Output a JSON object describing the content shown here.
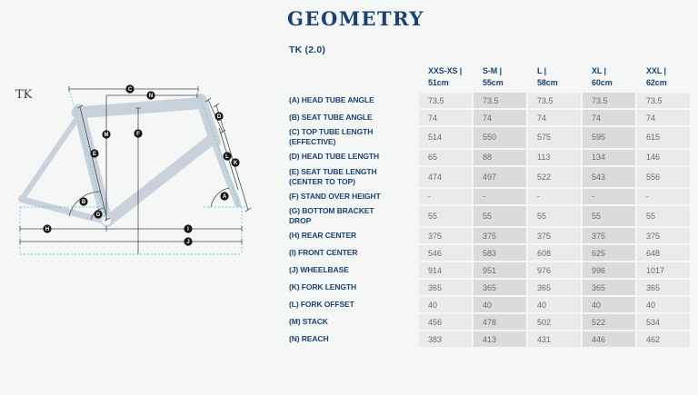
{
  "page": {
    "title": "GEOMETRY",
    "model": "TK (2.0)"
  },
  "diagram": {
    "label": "TK",
    "marker_letters": [
      "A",
      "B",
      "C",
      "D",
      "E",
      "F",
      "G",
      "H",
      "I",
      "J",
      "K",
      "L",
      "M",
      "N"
    ]
  },
  "table": {
    "columns": [
      {
        "line1": "XXS-XS |",
        "line2": "51cm"
      },
      {
        "line1": "S-M |",
        "line2": "55cm"
      },
      {
        "line1": "L |",
        "line2": "58cm"
      },
      {
        "line1": "XL |",
        "line2": "60cm"
      },
      {
        "line1": "XXL |",
        "line2": "62cm"
      }
    ],
    "rows": [
      {
        "label_lines": [
          "(A) HEAD TUBE ANGLE"
        ],
        "values": [
          "73.5",
          "73.5",
          "73.5",
          "73.5",
          "73.5"
        ]
      },
      {
        "label_lines": [
          "(B) SEAT TUBE ANGLE"
        ],
        "values": [
          "74",
          "74",
          "74",
          "74",
          "74"
        ]
      },
      {
        "label_lines": [
          "(C) TOP TUBE LENGTH",
          "(EFFECTIVE)"
        ],
        "values": [
          "514",
          "550",
          "575",
          "595",
          "615"
        ]
      },
      {
        "label_lines": [
          "(D) HEAD TUBE LENGTH"
        ],
        "values": [
          "65",
          "88",
          "113",
          "134",
          "146"
        ]
      },
      {
        "label_lines": [
          "(E) SEAT TUBE LENGTH",
          "(CENTER TO TOP)"
        ],
        "values": [
          "474",
          "497",
          "522",
          "543",
          "556"
        ]
      },
      {
        "label_lines": [
          "(F) STAND OVER HEIGHT"
        ],
        "values": [
          "-",
          "-",
          "-",
          "-",
          "-"
        ]
      },
      {
        "label_lines": [
          "(G) BOTTOM BRACKET",
          "DROP"
        ],
        "values": [
          "55",
          "55",
          "55",
          "55",
          "55"
        ]
      },
      {
        "label_lines": [
          "(H) REAR CENTER"
        ],
        "values": [
          "375",
          "375",
          "375",
          "375",
          "375"
        ]
      },
      {
        "label_lines": [
          "(I) FRONT CENTER"
        ],
        "values": [
          "546",
          "583",
          "608",
          "625",
          "648"
        ]
      },
      {
        "label_lines": [
          "(J) WHEELBASE"
        ],
        "values": [
          "914",
          "951",
          "976",
          "996",
          "1017"
        ]
      },
      {
        "label_lines": [
          "(K) FORK LENGTH"
        ],
        "values": [
          "365",
          "365",
          "365",
          "365",
          "365"
        ]
      },
      {
        "label_lines": [
          "(L) FORK OFFSET"
        ],
        "values": [
          "40",
          "40",
          "40",
          "40",
          "40"
        ]
      },
      {
        "label_lines": [
          "(M) STACK"
        ],
        "values": [
          "456",
          "478",
          "502",
          "522",
          "534"
        ]
      },
      {
        "label_lines": [
          "(N) REACH"
        ],
        "values": [
          "383",
          "413",
          "431",
          "446",
          "462"
        ]
      }
    ]
  },
  "colors": {
    "navy": "#1b4370",
    "frame_fill": "#c9d1db",
    "measure_line": "#4d4d4d",
    "cyan_dash": "#70cede",
    "cell_light": "#e9eaeb",
    "cell_dark": "#dadbdc",
    "value_text": "#6b6c6e",
    "background": "#f5f6f6"
  }
}
